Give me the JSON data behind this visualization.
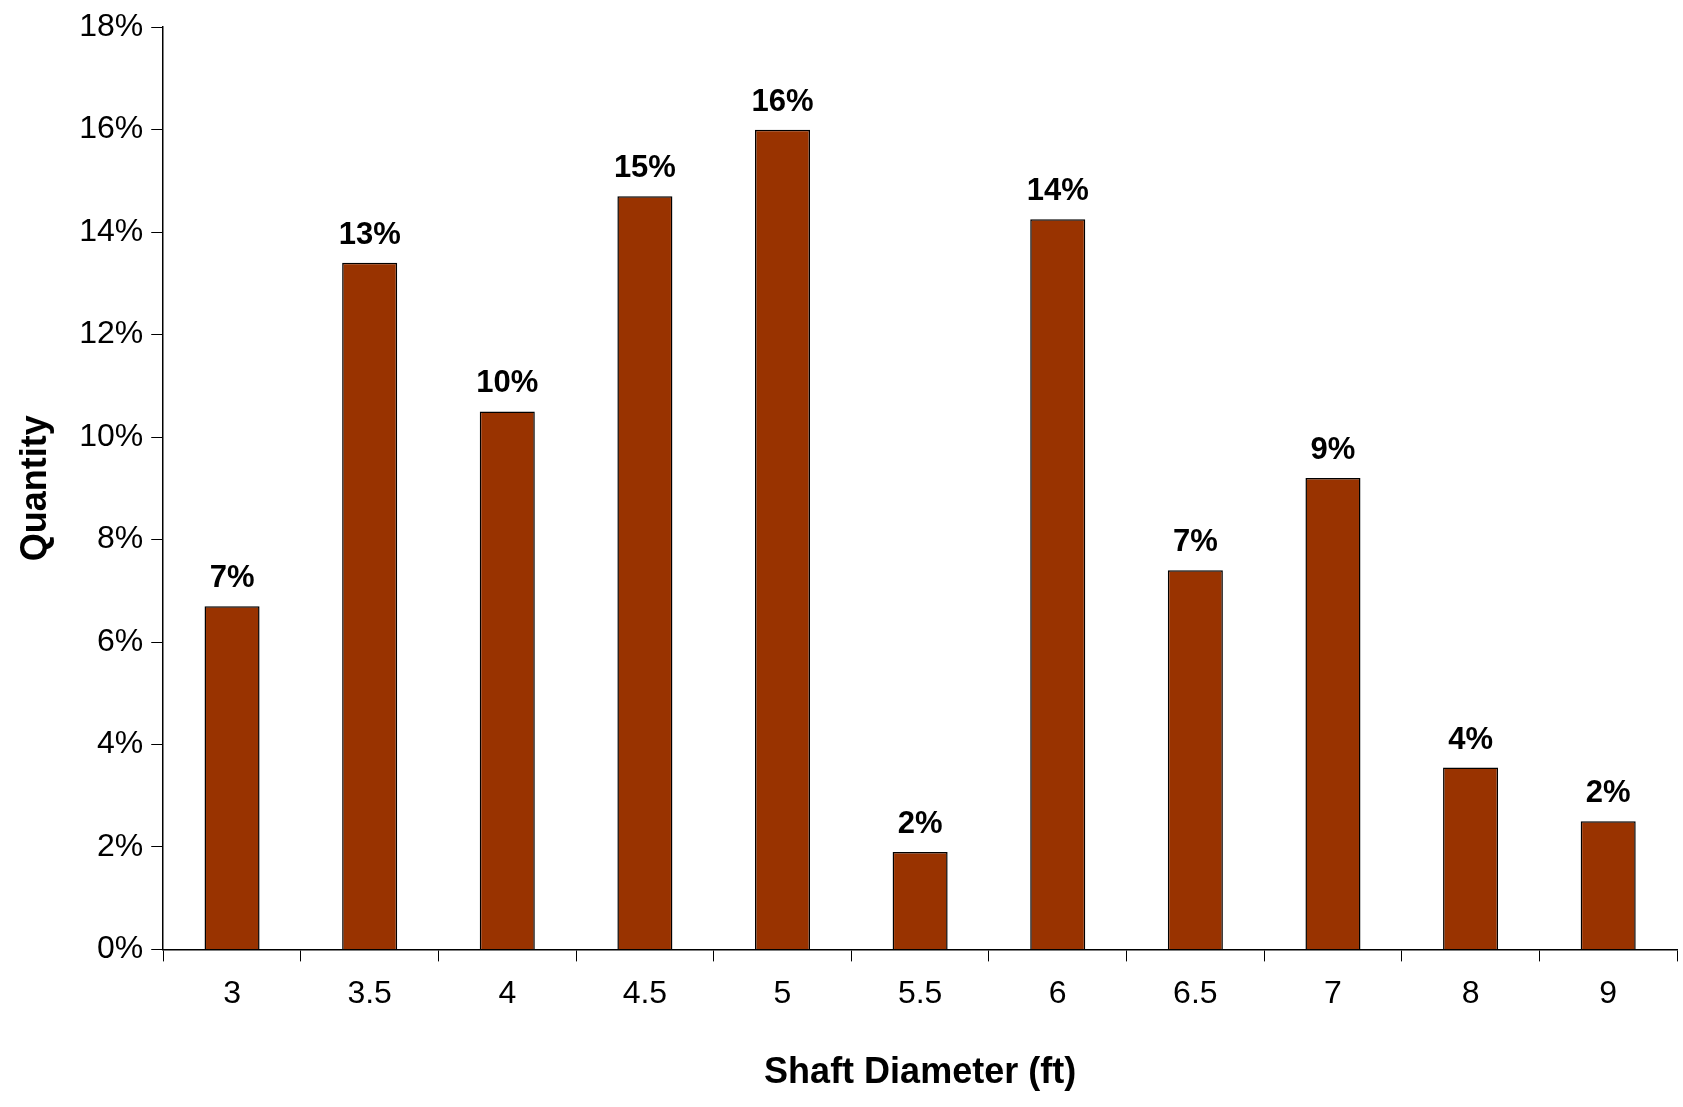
{
  "chart_data": {
    "type": "bar",
    "xlabel": "Shaft Diameter (ft)",
    "ylabel": "Quantity",
    "categories": [
      "3",
      "3.5",
      "4",
      "4.5",
      "5",
      "5.5",
      "6",
      "6.5",
      "7",
      "8",
      "9"
    ],
    "values": [
      6.7,
      13.4,
      10.5,
      14.7,
      16.0,
      1.9,
      14.25,
      7.4,
      9.2,
      3.55,
      2.5
    ],
    "value_labels": [
      "7%",
      "13%",
      "10%",
      "15%",
      "16%",
      "2%",
      "14%",
      "7%",
      "9%",
      "4%",
      "2%"
    ],
    "color": "#993300",
    "ylim": [
      0,
      18
    ],
    "yticks": [
      {
        "value": 0,
        "label": "0%"
      },
      {
        "value": 2,
        "label": "2%"
      },
      {
        "value": 4,
        "label": "4%"
      },
      {
        "value": 6,
        "label": "6%"
      },
      {
        "value": 8,
        "label": "8%"
      },
      {
        "value": 10,
        "label": "10%"
      },
      {
        "value": 12,
        "label": "12%"
      },
      {
        "value": 14,
        "label": "14%"
      },
      {
        "value": 16,
        "label": "16%"
      },
      {
        "value": 18,
        "label": "18%"
      }
    ],
    "grid": false,
    "legend": false
  }
}
